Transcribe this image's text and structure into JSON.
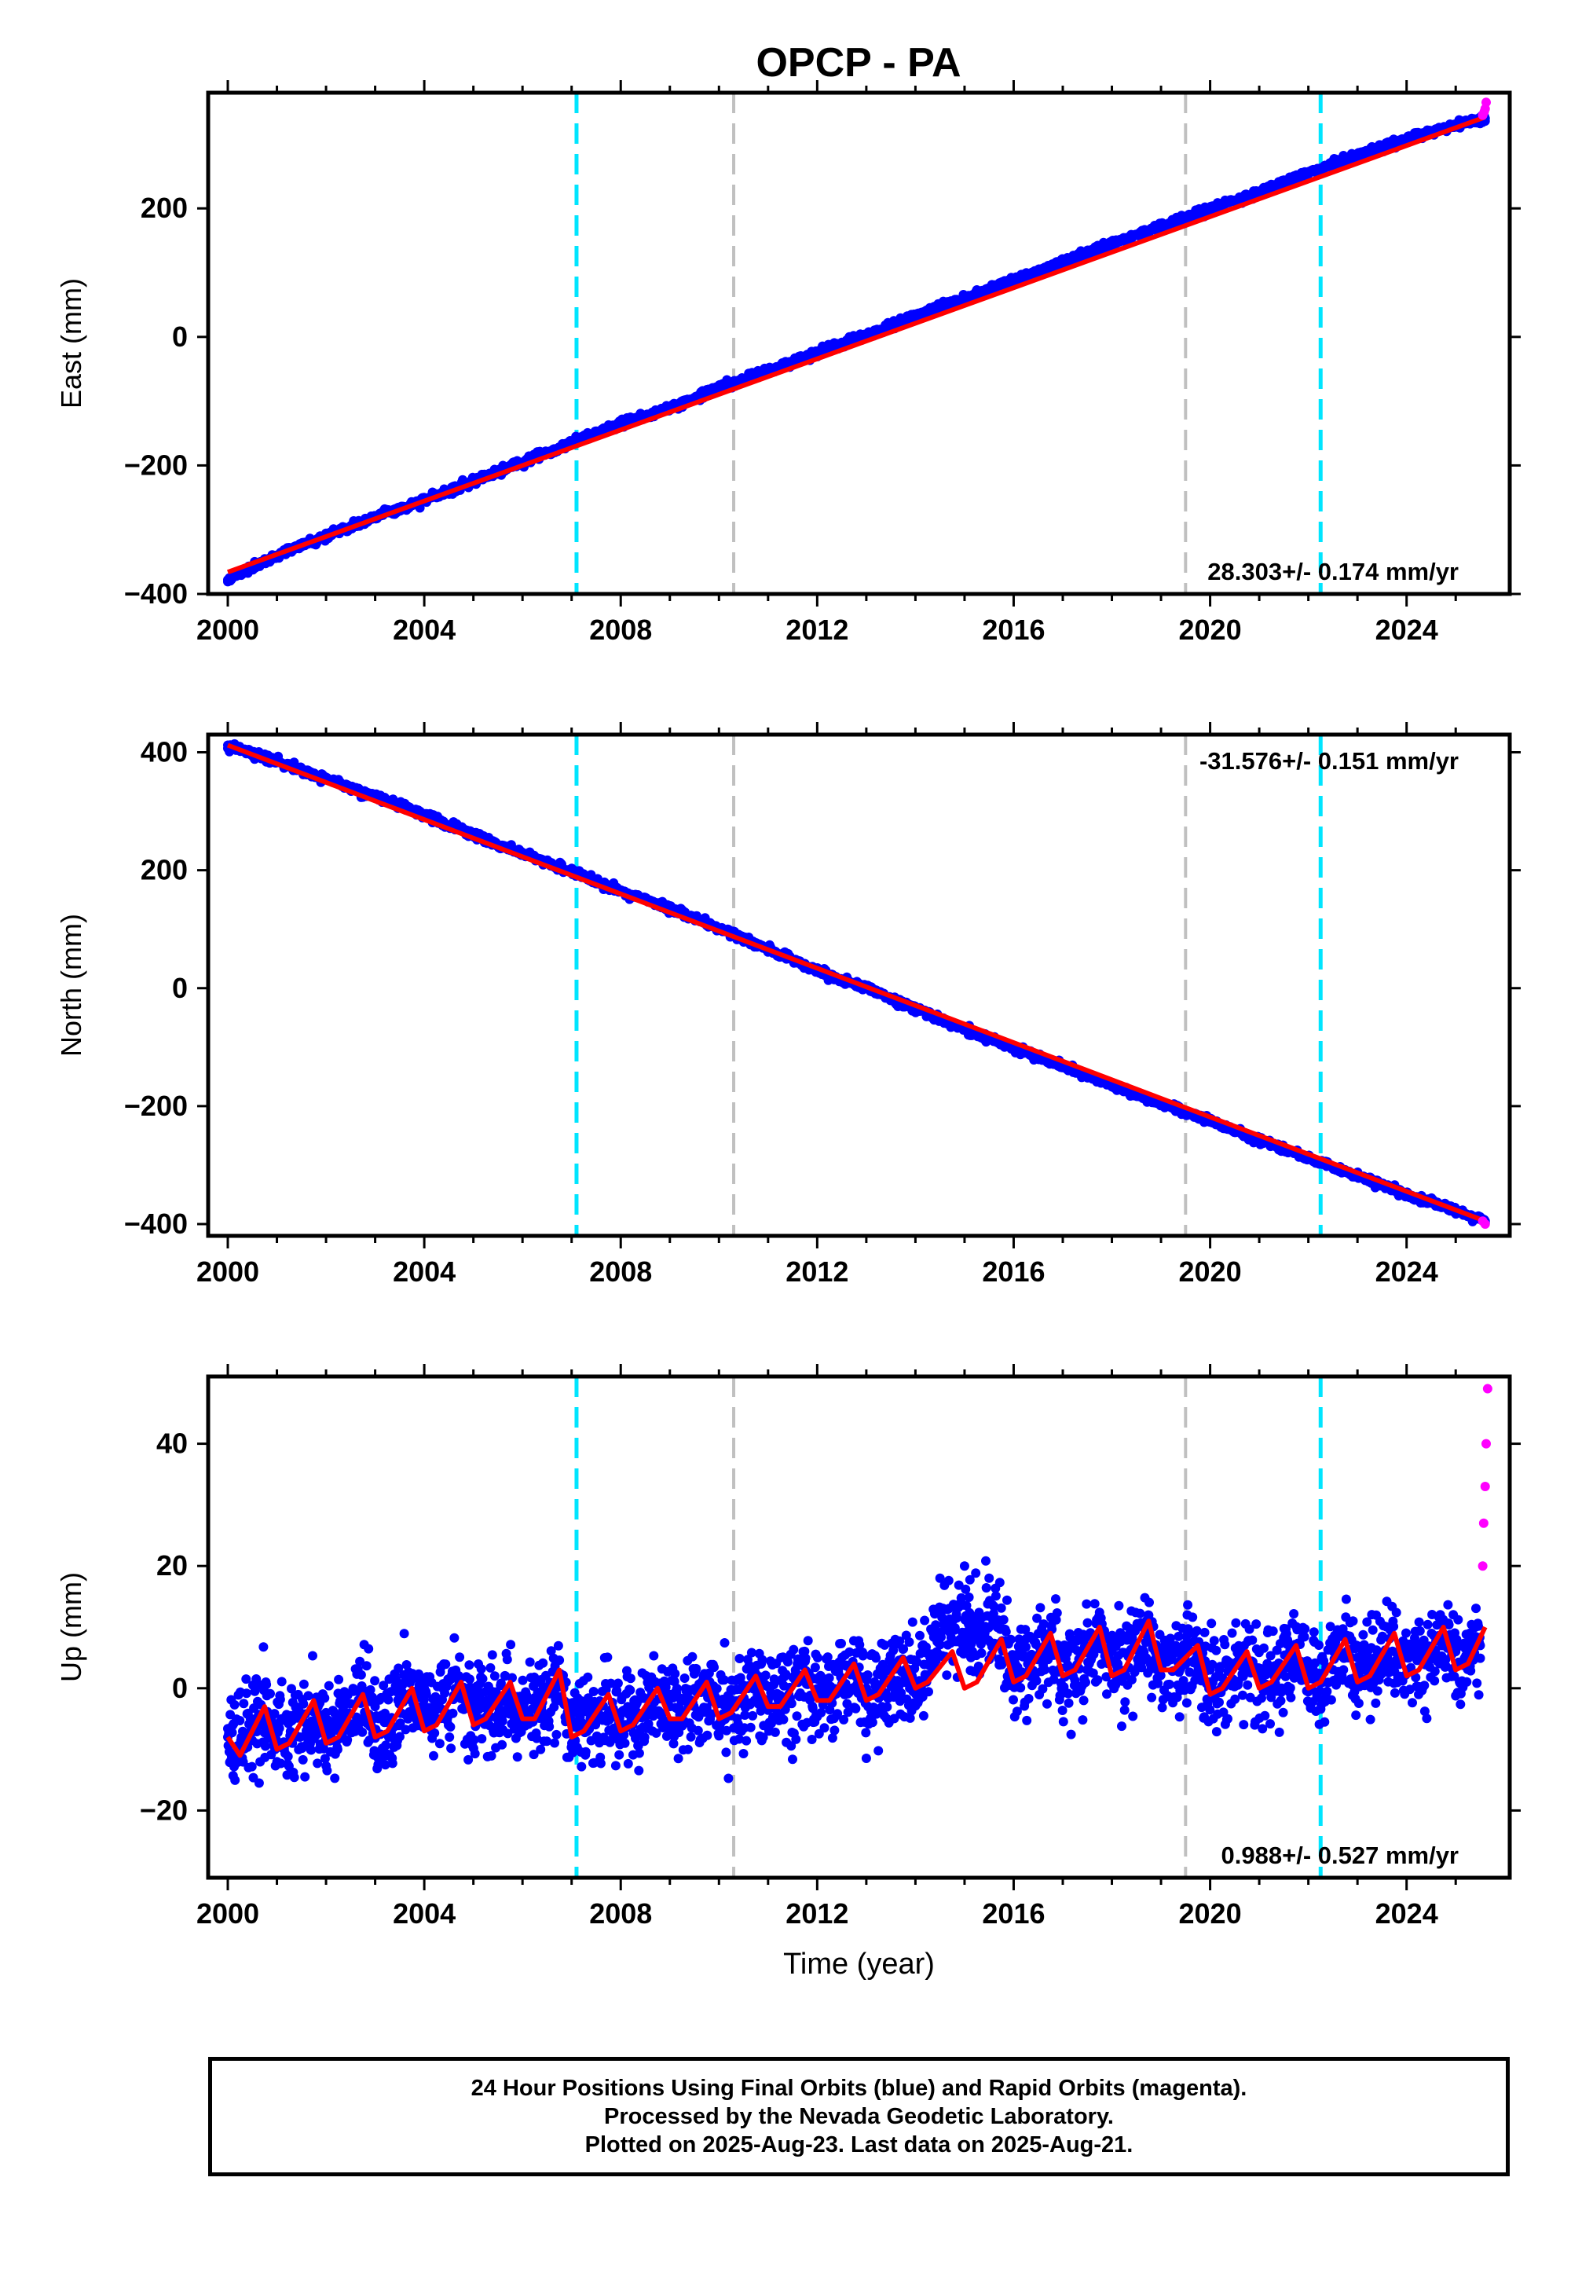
{
  "title": "OPCP - PA",
  "colors": {
    "final_orbits": "#0000ff",
    "rapid_orbits": "#ff00ff",
    "model": "#ff0000",
    "cyan_marker": "#00e5ff",
    "gray_marker": "#c0c0c0"
  },
  "chart_data": [
    {
      "type": "scatter",
      "panel": "east",
      "ylabel": "East (mm)",
      "xlim": [
        1999.6,
        2026.1
      ],
      "ylim": [
        -400,
        380
      ],
      "yticks": [
        -400,
        -200,
        0,
        200
      ],
      "xticks": [
        2000,
        2004,
        2008,
        2012,
        2016,
        2020,
        2024
      ],
      "xtick_labels": [
        "2000",
        "2004",
        "2008",
        "2012",
        "2016",
        "2020",
        "2024"
      ],
      "rate_label": "28.303+/- 0.174 mm/yr",
      "rate_position": "bottom-right",
      "vertical_markers": [
        {
          "x": 2007.1,
          "color": "cyan"
        },
        {
          "x": 2010.3,
          "color": "gray"
        },
        {
          "x": 2019.5,
          "color": "gray"
        },
        {
          "x": 2022.25,
          "color": "cyan"
        }
      ],
      "series": [
        {
          "role": "final_orbits",
          "x": [
            2000.0,
            2001.0,
            2002.0,
            2003.0,
            2004.0,
            2005.0,
            2006.0,
            2007.0,
            2008.0,
            2009.0,
            2010.0,
            2011.0,
            2012.0,
            2013.0,
            2014.0,
            2015.0,
            2016.0,
            2017.0,
            2018.0,
            2019.0,
            2020.0,
            2021.0,
            2022.0,
            2023.0,
            2024.0,
            2025.0,
            2025.6
          ],
          "y": [
            -378,
            -340,
            -310,
            -280,
            -255,
            -225,
            -195,
            -165,
            -135,
            -110,
            -80,
            -52,
            -25,
            3,
            32,
            60,
            88,
            117,
            145,
            172,
            198,
            225,
            255,
            282,
            308,
            330,
            340
          ]
        },
        {
          "role": "rapid_orbits",
          "x": [
            2025.55,
            2025.58,
            2025.6,
            2025.62
          ],
          "y": [
            345,
            350,
            355,
            365
          ]
        },
        {
          "role": "model",
          "x": [
            2000.0,
            2025.6
          ],
          "y": [
            -366,
            342
          ]
        }
      ]
    },
    {
      "type": "scatter",
      "panel": "north",
      "ylabel": "North (mm)",
      "xlim": [
        1999.6,
        2026.1
      ],
      "ylim": [
        -420,
        430
      ],
      "yticks": [
        -400,
        -200,
        0,
        200,
        400
      ],
      "xticks": [
        2000,
        2004,
        2008,
        2012,
        2016,
        2020,
        2024
      ],
      "xtick_labels": [
        "2000",
        "2004",
        "2008",
        "2012",
        "2016",
        "2020",
        "2024"
      ],
      "rate_label": "-31.576+/- 0.151 mm/yr",
      "rate_position": "top-right",
      "vertical_markers": [
        {
          "x": 2007.1,
          "color": "cyan"
        },
        {
          "x": 2010.3,
          "color": "gray"
        },
        {
          "x": 2019.5,
          "color": "gray"
        },
        {
          "x": 2022.25,
          "color": "cyan"
        }
      ],
      "series": [
        {
          "role": "final_orbits",
          "x": [
            2000.0,
            2001.0,
            2002.0,
            2003.0,
            2004.0,
            2005.0,
            2006.0,
            2007.0,
            2008.0,
            2009.0,
            2010.0,
            2011.0,
            2012.0,
            2013.0,
            2014.0,
            2015.0,
            2016.0,
            2017.0,
            2018.0,
            2019.0,
            2020.0,
            2021.0,
            2022.0,
            2023.0,
            2024.0,
            2025.0,
            2025.6
          ],
          "y": [
            412,
            385,
            355,
            325,
            295,
            260,
            228,
            198,
            165,
            135,
            102,
            65,
            30,
            0,
            -35,
            -70,
            -102,
            -132,
            -165,
            -195,
            -225,
            -258,
            -288,
            -318,
            -350,
            -378,
            -395
          ]
        },
        {
          "role": "rapid_orbits",
          "x": [
            2025.55,
            2025.6
          ],
          "y": [
            -395,
            -400
          ]
        },
        {
          "role": "model",
          "x": [
            2000.0,
            2025.6
          ],
          "y": [
            412,
            -395
          ]
        }
      ]
    },
    {
      "type": "scatter",
      "panel": "up",
      "ylabel": "Up (mm)",
      "xlabel": "Time (year)",
      "xlim": [
        1999.6,
        2026.1
      ],
      "ylim": [
        -31,
        51
      ],
      "yticks": [
        -20,
        0,
        20,
        40
      ],
      "xticks": [
        2000,
        2004,
        2008,
        2012,
        2016,
        2020,
        2024
      ],
      "xtick_labels": [
        "2000",
        "2004",
        "2008",
        "2012",
        "2016",
        "2020",
        "2024"
      ],
      "rate_label": "0.988+/- 0.527 mm/yr",
      "rate_position": "bottom-right",
      "vertical_markers": [
        {
          "x": 2007.1,
          "color": "cyan"
        },
        {
          "x": 2010.3,
          "color": "gray"
        },
        {
          "x": 2019.5,
          "color": "gray"
        },
        {
          "x": 2022.25,
          "color": "cyan"
        }
      ],
      "series": [
        {
          "role": "final_orbits",
          "x": [
            2000.0,
            2001.0,
            2002.0,
            2003.0,
            2004.0,
            2005.0,
            2006.0,
            2007.0,
            2008.0,
            2009.0,
            2010.0,
            2011.0,
            2012.0,
            2013.0,
            2014.0,
            2014.5,
            2015.0,
            2015.5,
            2016.0,
            2017.0,
            2018.0,
            2019.0,
            2020.0,
            2021.0,
            2022.0,
            2023.0,
            2024.0,
            2025.0,
            2025.5
          ],
          "y": [
            -8,
            -6,
            -4,
            -3,
            0,
            -2,
            -3,
            -4,
            -4,
            -3,
            -2,
            -2,
            -1,
            0,
            1,
            18,
            20,
            18,
            4,
            5,
            6,
            5,
            3,
            3,
            4,
            5,
            5,
            6,
            7
          ]
        },
        {
          "role": "rapid_orbits",
          "x": [
            2025.55,
            2025.57,
            2025.6,
            2025.62,
            2025.65
          ],
          "y": [
            20,
            27,
            33,
            40,
            49
          ]
        },
        {
          "role": "model",
          "x": [
            2000.0,
            2000.25,
            2000.75,
            2001.0,
            2001.25,
            2001.75,
            2002.0,
            2002.25,
            2002.75,
            2003.0,
            2003.25,
            2003.75,
            2004.0,
            2004.25,
            2004.75,
            2005.0,
            2005.25,
            2005.75,
            2006.0,
            2006.25,
            2006.75,
            2007.0,
            2007.25,
            2007.75,
            2008.0,
            2008.25,
            2008.75,
            2009.0,
            2009.25,
            2009.75,
            2010.0,
            2010.25,
            2010.75,
            2011.0,
            2011.25,
            2011.75,
            2012.0,
            2012.25,
            2012.75,
            2013.0,
            2013.25,
            2013.75,
            2014.0,
            2014.25,
            2014.75,
            2015.0,
            2015.25,
            2015.75,
            2016.0,
            2016.25,
            2016.75,
            2017.0,
            2017.25,
            2017.75,
            2018.0,
            2018.25,
            2018.75,
            2019.0,
            2019.25,
            2019.75,
            2020.0,
            2020.25,
            2020.75,
            2021.0,
            2021.25,
            2021.75,
            2022.0,
            2022.25,
            2022.75,
            2023.0,
            2023.25,
            2023.75,
            2024.0,
            2024.25,
            2024.75,
            2025.0,
            2025.25,
            2025.6
          ],
          "y": [
            -8,
            -11,
            -3,
            -10,
            -9,
            -2,
            -9,
            -8,
            -1,
            -8,
            -7,
            0,
            -7,
            -6,
            1,
            -6,
            -5,
            1,
            -5,
            -5,
            3,
            -8,
            -7,
            -1,
            -7,
            -6,
            0,
            -5,
            -5,
            1,
            -5,
            -4,
            2,
            -3,
            -3,
            3,
            -2,
            -2,
            4,
            -2,
            -1,
            5,
            0,
            1,
            6,
            0,
            1,
            8,
            1,
            2,
            9,
            2,
            3,
            10,
            2,
            3,
            11,
            3,
            3,
            7,
            -1,
            0,
            6,
            0,
            1,
            7,
            0,
            1,
            8,
            1,
            2,
            9,
            2,
            3,
            10,
            3,
            4,
            10
          ]
        }
      ]
    }
  ],
  "footer": {
    "line1": "24 Hour Positions Using Final Orbits (blue) and Rapid Orbits (magenta).",
    "line2": "Processed by the Nevada Geodetic Laboratory.",
    "line3": "Plotted on 2025-Aug-23. Last data on 2025-Aug-21."
  }
}
